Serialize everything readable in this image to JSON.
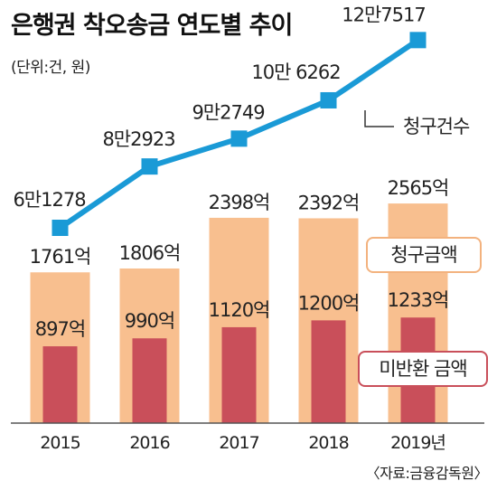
{
  "title": "은행권 착오송금 연도별 추이",
  "unit": "(단위:건, 원)",
  "source": "〈자료:금융감독원〉",
  "chart_data": {
    "type": "bar",
    "categories": [
      "2015",
      "2016",
      "2017",
      "2018",
      "2019년"
    ],
    "series": [
      {
        "name": "청구금액",
        "kind": "bar",
        "color": "#f8bf8f",
        "values": [
          1761,
          1806,
          2398,
          2392,
          2565
        ],
        "labels": [
          "1761억",
          "1806억",
          "2398억",
          "2392억",
          "2565억"
        ]
      },
      {
        "name": "미반환 금액",
        "kind": "bar",
        "color": "#c94f5a",
        "values": [
          897,
          990,
          1120,
          1200,
          1233
        ],
        "labels": [
          "897억",
          "990억",
          "1120억",
          "1200억",
          "1233억"
        ]
      },
      {
        "name": "청구건수",
        "kind": "line",
        "color": "#1a9ad6",
        "values": [
          61278,
          82923,
          92749,
          106262,
          127517
        ],
        "labels": [
          "6만1278",
          "8만2923",
          "9만2749",
          "10만 6262",
          "12만7517"
        ]
      }
    ],
    "ylim_bars": [
      0,
      3000
    ],
    "legend_position": "right"
  }
}
